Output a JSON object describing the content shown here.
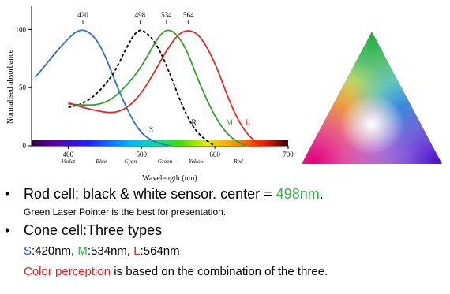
{
  "chart_data": {
    "type": "line",
    "xlabel": "Wavelength (nm)",
    "ylabel": "Normalised absorbance",
    "xlim": [
      350,
      700
    ],
    "ylim": [
      0,
      105
    ],
    "xticks": [
      "400",
      "500",
      "600",
      "700"
    ],
    "yticks": [
      "0",
      "50",
      "100"
    ],
    "peak_labels": [
      "420",
      "498",
      "534",
      "564"
    ],
    "color_names": [
      "Violet",
      "Blue",
      "Cyan",
      "Green",
      "Yellow",
      "Red"
    ],
    "series": [
      {
        "name": "S",
        "color": "#2f6fc0",
        "dash": false,
        "x": [
          355,
          370,
          385,
          400,
          410,
          420,
          430,
          440,
          450,
          460,
          470,
          480,
          490,
          500,
          510,
          520,
          530,
          540
        ],
        "y": [
          59,
          70,
          82,
          92,
          98,
          100,
          97,
          90,
          78,
          62,
          46,
          32,
          20,
          11,
          6,
          3,
          1,
          0
        ]
      },
      {
        "name": "R",
        "color": "#000000",
        "dash": true,
        "x": [
          400,
          420,
          440,
          460,
          470,
          480,
          490,
          498,
          505,
          515,
          525,
          540,
          555,
          570,
          585,
          600
        ],
        "y": [
          33,
          36,
          45,
          60,
          72,
          85,
          96,
          100,
          98,
          92,
          82,
          60,
          35,
          16,
          6,
          0
        ]
      },
      {
        "name": "M",
        "color": "#33a02c",
        "dash": false,
        "x": [
          400,
          420,
          440,
          460,
          480,
          500,
          515,
          525,
          534,
          545,
          560,
          575,
          590,
          605,
          620,
          635,
          645
        ],
        "y": [
          36,
          35,
          35,
          40,
          52,
          68,
          85,
          95,
          100,
          98,
          85,
          60,
          38,
          20,
          8,
          2,
          0
        ]
      },
      {
        "name": "L",
        "color": "#e32626",
        "dash": false,
        "x": [
          400,
          420,
          440,
          460,
          480,
          500,
          520,
          535,
          550,
          564,
          580,
          600,
          620,
          635,
          650,
          665
        ],
        "y": [
          37,
          33,
          30,
          28,
          32,
          45,
          66,
          83,
          96,
          100,
          95,
          72,
          38,
          18,
          6,
          0
        ]
      }
    ]
  },
  "text": {
    "b1_main": "Rod cell: black & white sensor. center = ",
    "b1_value": "498nm",
    "b1_end": ".",
    "b1_sub": "Green Laser Pointer is the best for presentation.",
    "b2_main": "Cone cell:Three types",
    "s_letter": "S",
    "s_value": ":420nm, ",
    "m_letter": "M",
    "m_value": ":534nm, ",
    "l_letter": "L",
    "l_value": ":564nm",
    "b2_colored": "Color perception",
    "b2_rest": " is based on the combination of the three."
  },
  "colors": {
    "green": "#33b24a",
    "blue": "#1f4fd6",
    "red": "#e32020",
    "bullet": "#4a7fc1"
  }
}
